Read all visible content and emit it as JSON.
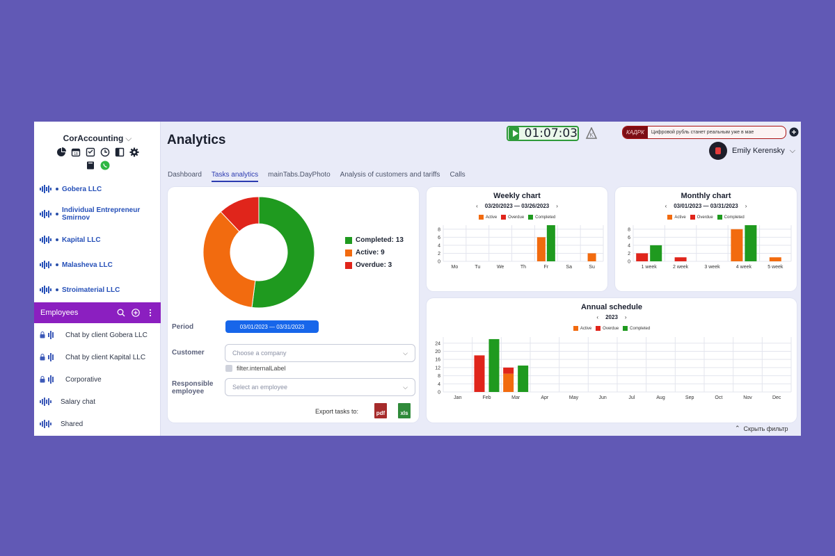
{
  "sidebar": {
    "brand": "CorAccounting",
    "icons_row1": [
      "pie-chart-icon",
      "calendar-icon",
      "checklist-icon",
      "clock-icon",
      "layout-icon",
      "gear-icon"
    ],
    "icons_row2": [
      "book-icon",
      "whatsapp-icon"
    ],
    "clients": [
      {
        "name": "Gobera LLC"
      },
      {
        "name": "Individual Entrepreneur Smirnov"
      },
      {
        "name": "Kapital LLC"
      },
      {
        "name": "Malasheva LLC"
      },
      {
        "name": "Stroimaterial LLC"
      }
    ],
    "employees_label": "Employees",
    "chats": [
      {
        "name": "Chat by client Gobera LLC"
      },
      {
        "name": "Chat by client Kapital LLC"
      },
      {
        "name": "Corporative"
      },
      {
        "name": "Salary chat"
      },
      {
        "name": "Shared"
      }
    ]
  },
  "header": {
    "title": "Analytics",
    "timer": "01:07:03",
    "news_logo": "КАДРК",
    "news_text": "Цифровой рубль станет реальным уже в мае",
    "user_name": "Emily Kerensky"
  },
  "tabs": [
    {
      "label": "Dashboard",
      "active": false
    },
    {
      "label": "Tasks analytics",
      "active": true
    },
    {
      "label": "mainTabs.DayPhoto",
      "active": false
    },
    {
      "label": "Analysis of customers and tariffs",
      "active": false
    },
    {
      "label": "Calls",
      "active": false
    }
  ],
  "colors": {
    "completed": "#1f9a1f",
    "active": "#f26b0f",
    "overdue": "#e0251b"
  },
  "summary": {
    "completed_label": "Completed: 13",
    "active_label": "Active: 9",
    "overdue_label": "Overdue: 3"
  },
  "filters": {
    "period_label": "Period",
    "period_value": "03/01/2023 — 03/31/2023",
    "customer_label": "Customer",
    "customer_placeholder": "Choose a company",
    "internal_label": "filter.internalLabel",
    "responsible_label_1": "Responsible",
    "responsible_label_2": "employee",
    "employee_placeholder": "Select an employee",
    "export_label": "Export tasks to:",
    "pdf_label": "pdf",
    "xls_label": "xls"
  },
  "legend": {
    "active": "Active",
    "overdue": "Overdue",
    "completed": "Completed"
  },
  "hide_filter": "Скрыть фильтр",
  "chart_data": [
    {
      "type": "pie",
      "categories": [
        "Completed",
        "Active",
        "Overdue"
      ],
      "values": [
        13,
        9,
        3
      ]
    },
    {
      "type": "bar",
      "title": "Weekly chart",
      "range": "03/20/2023 — 03/26/2023",
      "categories": [
        "Mo",
        "Tu",
        "We",
        "Th",
        "Fr",
        "Sa",
        "Su"
      ],
      "ylim": [
        0,
        9
      ],
      "yticks": [
        0,
        2,
        4,
        6,
        8
      ],
      "series": [
        {
          "name": "Active",
          "values": [
            0,
            0,
            0,
            0,
            6,
            0,
            2
          ]
        },
        {
          "name": "Overdue",
          "values": [
            0,
            0,
            0,
            0,
            0,
            0,
            0
          ]
        },
        {
          "name": "Completed",
          "values": [
            0,
            0,
            0,
            0,
            9,
            0,
            0
          ]
        }
      ]
    },
    {
      "type": "bar",
      "title": "Monthly chart",
      "range": "03/01/2023 — 03/31/2023",
      "categories": [
        "1 week",
        "2 week",
        "3 week",
        "4 week",
        "5 week"
      ],
      "ylim": [
        0,
        9
      ],
      "yticks": [
        0,
        2,
        4,
        6,
        8
      ],
      "series": [
        {
          "name": "Active",
          "values": [
            0,
            0,
            0,
            8,
            1
          ]
        },
        {
          "name": "Overdue",
          "values": [
            2,
            1,
            0,
            0,
            0
          ]
        },
        {
          "name": "Completed",
          "values": [
            4,
            0,
            0,
            9,
            0
          ]
        }
      ]
    },
    {
      "type": "bar",
      "title": "Annual schedule",
      "range": "2023",
      "categories": [
        "Jan",
        "Feb",
        "Mar",
        "Apr",
        "May",
        "Jun",
        "Jul",
        "Aug",
        "Sep",
        "Oct",
        "Nov",
        "Dec"
      ],
      "ylim": [
        0,
        27
      ],
      "yticks": [
        0,
        4,
        8,
        12,
        16,
        20,
        24
      ],
      "stacked_active_overdue": true,
      "series": [
        {
          "name": "Active",
          "values": [
            0,
            0,
            9,
            0,
            0,
            0,
            0,
            0,
            0,
            0,
            0,
            0
          ]
        },
        {
          "name": "Overdue",
          "values": [
            0,
            18,
            3,
            0,
            0,
            0,
            0,
            0,
            0,
            0,
            0,
            0
          ]
        },
        {
          "name": "Completed",
          "values": [
            0,
            26,
            13,
            0,
            0,
            0,
            0,
            0,
            0,
            0,
            0,
            0
          ]
        }
      ]
    }
  ]
}
